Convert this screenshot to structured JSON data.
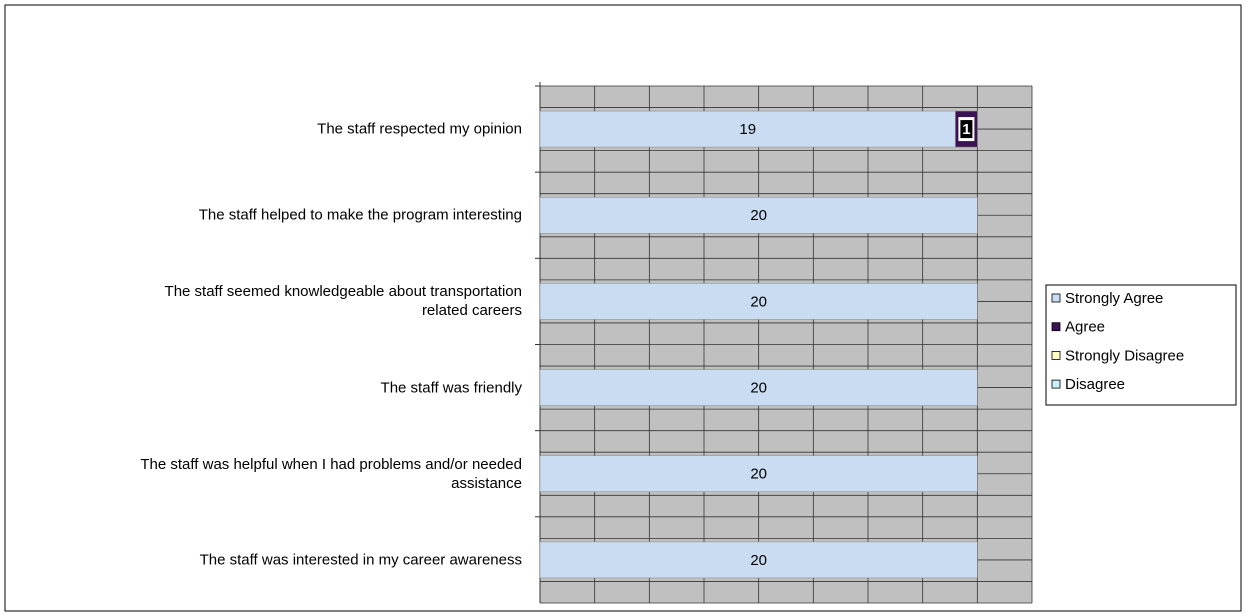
{
  "chart_data": {
    "type": "stacked_barh",
    "categories": [
      "The staff respected my opinion",
      "The staff helped to make the program interesting",
      "The staff seemed knowledgeable about transportation\nrelated careers",
      "The staff was friendly",
      "The staff was helpful when I had problems and/or needed\nassistance",
      "The staff was interested in my career awareness"
    ],
    "series": [
      {
        "name": "Strongly Agree",
        "color": "#c9dcf2",
        "values": [
          19,
          20,
          20,
          20,
          20,
          20
        ]
      },
      {
        "name": "Agree",
        "color": "#3b1352",
        "values": [
          1,
          null,
          null,
          null,
          null,
          null
        ]
      },
      {
        "name": "Strongly Disagree",
        "color": "#ffffc4",
        "values": [
          null,
          null,
          null,
          null,
          null,
          null
        ]
      },
      {
        "name": "Disagree",
        "color": "#cdeefc",
        "values": [
          null,
          null,
          null,
          null,
          null,
          null
        ]
      }
    ],
    "xlim": [
      0,
      22.5
    ],
    "xticks": [
      0,
      2.5,
      5,
      7.5,
      10,
      12.5,
      15,
      17.5,
      20,
      22.5
    ],
    "grid": true,
    "legend": "right"
  }
}
